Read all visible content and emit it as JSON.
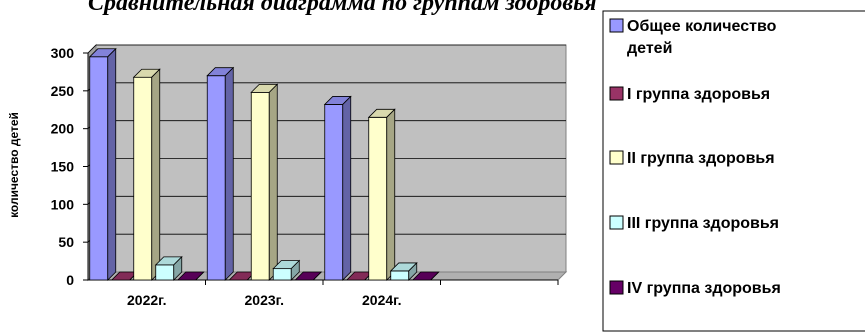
{
  "chart_data": {
    "type": "bar",
    "title": "Сравнительная диаграмма по группам здоровья",
    "xlabel": "",
    "ylabel": "количество детей",
    "categories": [
      "2022г.",
      "2023г.",
      "2024г.",
      ""
    ],
    "ylim": [
      0,
      300
    ],
    "yticks": [
      0,
      50,
      100,
      150,
      200,
      250,
      300
    ],
    "grid": true,
    "legend_position": "right",
    "series": [
      {
        "name": "Общее количество детей",
        "values": [
          295,
          270,
          232,
          null
        ],
        "color": "#9999ff"
      },
      {
        "name": "I группа здоровья",
        "values": [
          0,
          0,
          0,
          null
        ],
        "color": "#993366"
      },
      {
        "name": "II группа здоровья",
        "values": [
          268,
          248,
          215,
          null
        ],
        "color": "#ffffcc"
      },
      {
        "name": "III группа здоровья",
        "values": [
          20,
          15,
          12,
          null
        ],
        "color": "#ccffff"
      },
      {
        "name": "IV группа здоровья",
        "values": [
          0,
          0,
          0,
          null
        ],
        "color": "#660066"
      }
    ]
  }
}
